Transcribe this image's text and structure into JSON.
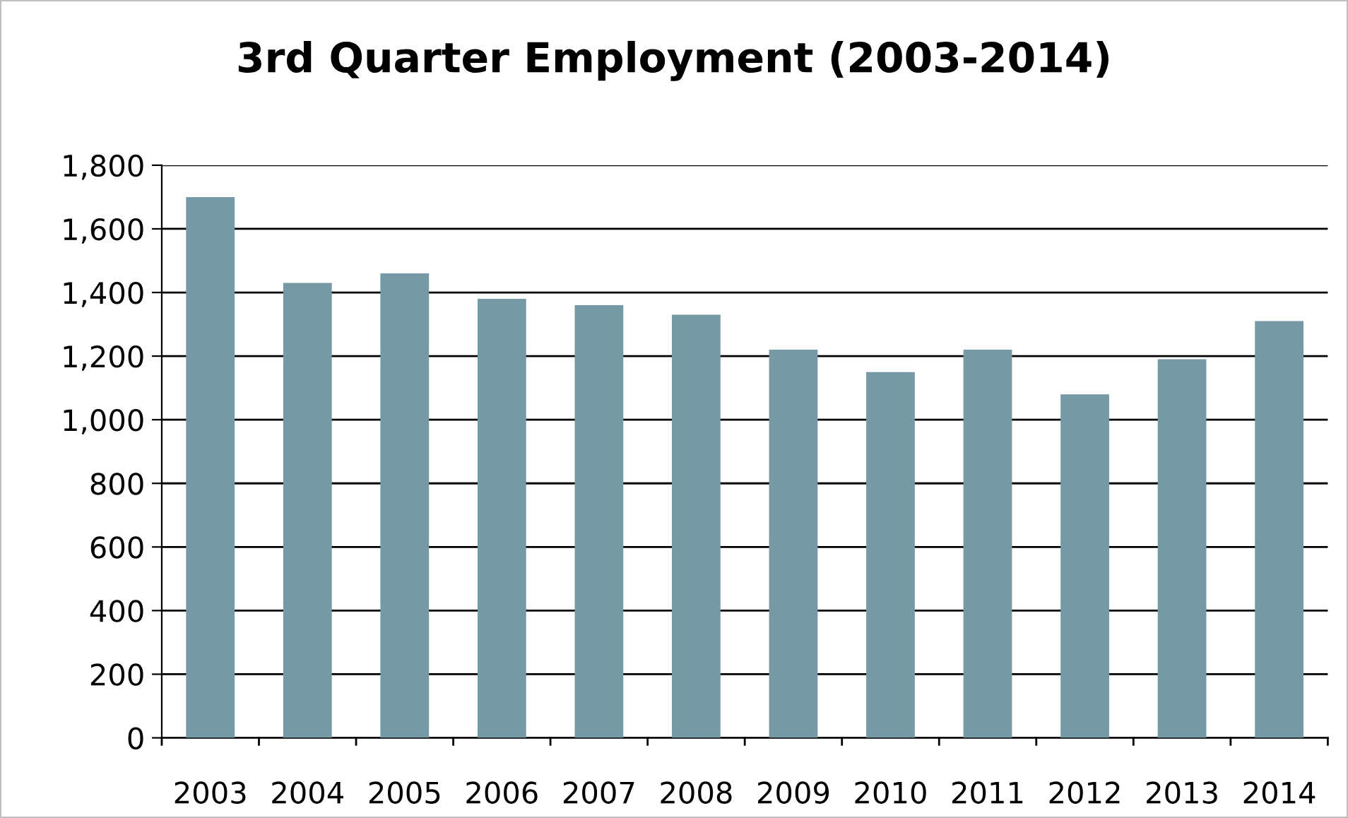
{
  "chart_data": {
    "type": "bar",
    "title": "3rd Quarter Employment (2003-2014)",
    "categories": [
      "2003",
      "2004",
      "2005",
      "2006",
      "2007",
      "2008",
      "2009",
      "2010",
      "2011",
      "2012",
      "2013",
      "2014"
    ],
    "values": [
      1700,
      1430,
      1460,
      1380,
      1360,
      1330,
      1220,
      1150,
      1220,
      1080,
      1190,
      1310
    ],
    "color": "#7699a6",
    "ylim": [
      0,
      1800
    ],
    "yticks": [
      {
        "value": 0,
        "label": "0"
      },
      {
        "value": 200,
        "label": "200"
      },
      {
        "value": 400,
        "label": "400"
      },
      {
        "value": 600,
        "label": "600"
      },
      {
        "value": 800,
        "label": "800"
      },
      {
        "value": 1000,
        "label": "1,000"
      },
      {
        "value": 1200,
        "label": "1,200"
      },
      {
        "value": 1400,
        "label": "1,400"
      },
      {
        "value": 1600,
        "label": "1,600"
      },
      {
        "value": 1800,
        "label": "1,800"
      }
    ],
    "grid": "y",
    "legend": false
  }
}
